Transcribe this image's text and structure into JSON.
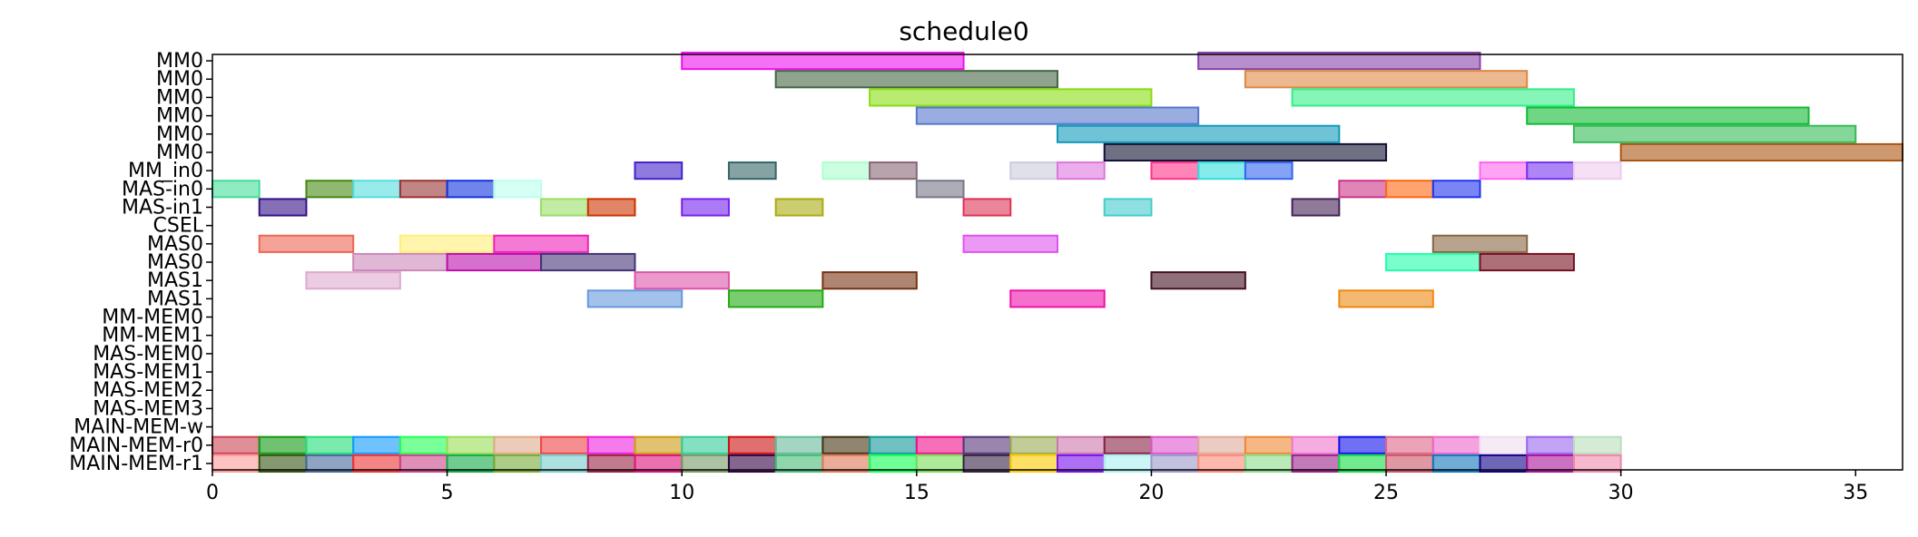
{
  "chart_data": {
    "type": "gantt",
    "title": "schedule0",
    "xlabel": "",
    "ylabel": "",
    "xlim": [
      0,
      36
    ],
    "x_ticks": [
      0,
      5,
      10,
      15,
      20,
      25,
      30,
      35
    ],
    "grid": false,
    "rows": [
      "MM0",
      "MM0",
      "MM0",
      "MM0",
      "MM0",
      "MM0",
      "MM_in0",
      "MAS-in0",
      "MAS-in1",
      "CSEL",
      "MAS0",
      "MAS0",
      "MAS1",
      "MAS1",
      "MM-MEM0",
      "MM-MEM1",
      "MAS-MEM0",
      "MAS-MEM1",
      "MAS-MEM2",
      "MAS-MEM3",
      "MAIN-MEM-w",
      "MAIN-MEM-r0",
      "MAIN-MEM-r1"
    ],
    "bars": [
      {
        "row": 0,
        "start": 10,
        "end": 16,
        "color": "#ee11ee"
      },
      {
        "row": 0,
        "start": 21,
        "end": 27,
        "color": "#8844aa"
      },
      {
        "row": 1,
        "start": 12,
        "end": 18,
        "color": "#446644"
      },
      {
        "row": 1,
        "start": 22,
        "end": 28,
        "color": "#dd8844"
      },
      {
        "row": 2,
        "start": 14,
        "end": 20,
        "color": "#88dd11"
      },
      {
        "row": 2,
        "start": 23,
        "end": 29,
        "color": "#33ee88"
      },
      {
        "row": 3,
        "start": 15,
        "end": 21,
        "color": "#5577cc"
      },
      {
        "row": 3,
        "start": 28,
        "end": 34,
        "color": "#11bb33"
      },
      {
        "row": 4,
        "start": 18,
        "end": 24,
        "color": "#1199bb"
      },
      {
        "row": 4,
        "start": 29,
        "end": 35,
        "color": "#33bb55"
      },
      {
        "row": 5,
        "start": 19,
        "end": 25,
        "color": "#111133"
      },
      {
        "row": 5,
        "start": 30,
        "end": 36,
        "color": "#aa5511"
      },
      {
        "row": 6,
        "start": 9,
        "end": 10,
        "color": "#4422cc"
      },
      {
        "row": 6,
        "start": 11,
        "end": 12,
        "color": "#336666"
      },
      {
        "row": 6,
        "start": 13,
        "end": 14,
        "color": "#aaffcc"
      },
      {
        "row": 6,
        "start": 14,
        "end": 15,
        "color": "#886677"
      },
      {
        "row": 6,
        "start": 17,
        "end": 18,
        "color": "#ccccdd"
      },
      {
        "row": 6,
        "start": 18,
        "end": 19,
        "color": "#dd77dd"
      },
      {
        "row": 6,
        "start": 20,
        "end": 21,
        "color": "#ff3388"
      },
      {
        "row": 6,
        "start": 21,
        "end": 22,
        "color": "#33dddd"
      },
      {
        "row": 6,
        "start": 22,
        "end": 23,
        "color": "#3366ee"
      },
      {
        "row": 6,
        "start": 27,
        "end": 28,
        "color": "#ff66ee"
      },
      {
        "row": 6,
        "start": 28,
        "end": 29,
        "color": "#7733ee"
      },
      {
        "row": 6,
        "start": 29,
        "end": 30,
        "color": "#eeccee"
      },
      {
        "row": 7,
        "start": 0,
        "end": 1,
        "color": "#44dd99"
      },
      {
        "row": 7,
        "start": 2,
        "end": 3,
        "color": "#448811"
      },
      {
        "row": 7,
        "start": 3,
        "end": 4,
        "color": "#55dddd"
      },
      {
        "row": 7,
        "start": 4,
        "end": 5,
        "color": "#993333"
      },
      {
        "row": 7,
        "start": 5,
        "end": 6,
        "color": "#1133dd"
      },
      {
        "row": 7,
        "start": 6,
        "end": 7,
        "color": "#bbffee"
      },
      {
        "row": 7,
        "start": 15,
        "end": 16,
        "color": "#777788"
      },
      {
        "row": 7,
        "start": 24,
        "end": 25,
        "color": "#cc3388"
      },
      {
        "row": 7,
        "start": 25,
        "end": 26,
        "color": "#ff6611"
      },
      {
        "row": 7,
        "start": 26,
        "end": 27,
        "color": "#2233ee"
      },
      {
        "row": 8,
        "start": 1,
        "end": 2,
        "color": "#331188"
      },
      {
        "row": 8,
        "start": 7,
        "end": 8,
        "color": "#99dd66"
      },
      {
        "row": 8,
        "start": 8,
        "end": 9,
        "color": "#cc3300"
      },
      {
        "row": 8,
        "start": 10,
        "end": 11,
        "color": "#7722ee"
      },
      {
        "row": 8,
        "start": 12,
        "end": 13,
        "color": "#aaaa11"
      },
      {
        "row": 8,
        "start": 16,
        "end": 17,
        "color": "#dd3355"
      },
      {
        "row": 8,
        "start": 19,
        "end": 20,
        "color": "#44cccc"
      },
      {
        "row": 8,
        "start": 23,
        "end": 24,
        "color": "#442255"
      },
      {
        "row": 10,
        "start": 1,
        "end": 3,
        "color": "#ee6655"
      },
      {
        "row": 10,
        "start": 4,
        "end": 6,
        "color": "#ffee77"
      },
      {
        "row": 10,
        "start": 6,
        "end": 8,
        "color": "#ee22bb"
      },
      {
        "row": 10,
        "start": 16,
        "end": 18,
        "color": "#dd55ee"
      },
      {
        "row": 10,
        "start": 26,
        "end": 28,
        "color": "#886644"
      },
      {
        "row": 11,
        "start": 3,
        "end": 5,
        "color": "#cc88bb"
      },
      {
        "row": 11,
        "start": 5,
        "end": 7,
        "color": "#bb11aa"
      },
      {
        "row": 11,
        "start": 7,
        "end": 9,
        "color": "#443377"
      },
      {
        "row": 11,
        "start": 25,
        "end": 27,
        "color": "#22ffaa"
      },
      {
        "row": 11,
        "start": 27,
        "end": 29,
        "color": "#771122"
      },
      {
        "row": 12,
        "start": 2,
        "end": 4,
        "color": "#ddaacc"
      },
      {
        "row": 12,
        "start": 9,
        "end": 11,
        "color": "#dd55aa"
      },
      {
        "row": 12,
        "start": 13,
        "end": 15,
        "color": "#773311"
      },
      {
        "row": 12,
        "start": 20,
        "end": 22,
        "color": "#441122"
      },
      {
        "row": 13,
        "start": 8,
        "end": 10,
        "color": "#6699dd"
      },
      {
        "row": 13,
        "start": 11,
        "end": 13,
        "color": "#22aa11"
      },
      {
        "row": 13,
        "start": 17,
        "end": 19,
        "color": "#ee11aa"
      },
      {
        "row": 13,
        "start": 24,
        "end": 26,
        "color": "#ee8811"
      },
      {
        "row": 21,
        "start": 0,
        "end": 1,
        "color": "#cc4455"
      },
      {
        "row": 21,
        "start": 1,
        "end": 2,
        "color": "#119911"
      },
      {
        "row": 21,
        "start": 2,
        "end": 3,
        "color": "#22dd77"
      },
      {
        "row": 21,
        "start": 3,
        "end": 4,
        "color": "#1199ff"
      },
      {
        "row": 21,
        "start": 4,
        "end": 5,
        "color": "#22ff55"
      },
      {
        "row": 21,
        "start": 5,
        "end": 6,
        "color": "#99dd55"
      },
      {
        "row": 21,
        "start": 6,
        "end": 7,
        "color": "#ddaa88"
      },
      {
        "row": 21,
        "start": 7,
        "end": 8,
        "color": "#ee4444"
      },
      {
        "row": 21,
        "start": 8,
        "end": 9,
        "color": "#ee22dd"
      },
      {
        "row": 21,
        "start": 9,
        "end": 10,
        "color": "#cc9911"
      },
      {
        "row": 21,
        "start": 10,
        "end": 11,
        "color": "#33cc99"
      },
      {
        "row": 21,
        "start": 11,
        "end": 12,
        "color": "#cc1111"
      },
      {
        "row": 21,
        "start": 12,
        "end": 13,
        "color": "#66bb99"
      },
      {
        "row": 21,
        "start": 13,
        "end": 14,
        "color": "#443311"
      },
      {
        "row": 21,
        "start": 14,
        "end": 15,
        "color": "#119999"
      },
      {
        "row": 21,
        "start": 15,
        "end": 16,
        "color": "#ee1188"
      },
      {
        "row": 21,
        "start": 16,
        "end": 17,
        "color": "#553377"
      },
      {
        "row": 21,
        "start": 17,
        "end": 18,
        "color": "#99aa55"
      },
      {
        "row": 21,
        "start": 18,
        "end": 19,
        "color": "#cc77aa"
      },
      {
        "row": 21,
        "start": 19,
        "end": 20,
        "color": "#882244"
      },
      {
        "row": 21,
        "start": 20,
        "end": 21,
        "color": "#dd55cc"
      },
      {
        "row": 21,
        "start": 21,
        "end": 22,
        "color": "#ddaa99"
      },
      {
        "row": 21,
        "start": 22,
        "end": 23,
        "color": "#ee8833"
      },
      {
        "row": 21,
        "start": 23,
        "end": 24,
        "color": "#ee77cc"
      },
      {
        "row": 21,
        "start": 24,
        "end": 25,
        "color": "#1111ee"
      },
      {
        "row": 21,
        "start": 25,
        "end": 26,
        "color": "#dd6688"
      },
      {
        "row": 21,
        "start": 26,
        "end": 27,
        "color": "#ee66cc"
      },
      {
        "row": 21,
        "start": 27,
        "end": 28,
        "color": "#eeddee"
      },
      {
        "row": 21,
        "start": 28,
        "end": 29,
        "color": "#9966ee"
      },
      {
        "row": 21,
        "start": 29,
        "end": 30,
        "color": "#bbddbb"
      },
      {
        "row": 22,
        "start": 0,
        "end": 1,
        "color": "#ff9999"
      },
      {
        "row": 22,
        "start": 1,
        "end": 2,
        "color": "#335511"
      },
      {
        "row": 22,
        "start": 2,
        "end": 3,
        "color": "#446699"
      },
      {
        "row": 22,
        "start": 3,
        "end": 4,
        "color": "#ee3333"
      },
      {
        "row": 22,
        "start": 4,
        "end": 5,
        "color": "#cc4488"
      },
      {
        "row": 22,
        "start": 5,
        "end": 6,
        "color": "#11aa44"
      },
      {
        "row": 22,
        "start": 6,
        "end": 7,
        "color": "#77aa33"
      },
      {
        "row": 22,
        "start": 7,
        "end": 8,
        "color": "#77cccc"
      },
      {
        "row": 22,
        "start": 8,
        "end": 9,
        "color": "#992244"
      },
      {
        "row": 22,
        "start": 9,
        "end": 10,
        "color": "#dd1177"
      },
      {
        "row": 22,
        "start": 10,
        "end": 11,
        "color": "#779966"
      },
      {
        "row": 22,
        "start": 11,
        "end": 12,
        "color": "#330044"
      },
      {
        "row": 22,
        "start": 12,
        "end": 13,
        "color": "#44bb77"
      },
      {
        "row": 22,
        "start": 13,
        "end": 14,
        "color": "#dd7755"
      },
      {
        "row": 22,
        "start": 14,
        "end": 15,
        "color": "#11ff55"
      },
      {
        "row": 22,
        "start": 15,
        "end": 16,
        "color": "#77dd55"
      },
      {
        "row": 22,
        "start": 16,
        "end": 17,
        "color": "#332244"
      },
      {
        "row": 22,
        "start": 17,
        "end": 18,
        "color": "#ffcc00"
      },
      {
        "row": 22,
        "start": 18,
        "end": 19,
        "color": "#7711ee"
      },
      {
        "row": 22,
        "start": 19,
        "end": 20,
        "color": "#aaeeee"
      },
      {
        "row": 22,
        "start": 20,
        "end": 21,
        "color": "#9999cc"
      },
      {
        "row": 22,
        "start": 21,
        "end": 22,
        "color": "#ff8877"
      },
      {
        "row": 22,
        "start": 22,
        "end": 23,
        "color": "#88dd88"
      },
      {
        "row": 22,
        "start": 23,
        "end": 24,
        "color": "#992288"
      },
      {
        "row": 22,
        "start": 24,
        "end": 25,
        "color": "#11dd44"
      },
      {
        "row": 22,
        "start": 25,
        "end": 26,
        "color": "#cc5566"
      },
      {
        "row": 22,
        "start": 26,
        "end": 27,
        "color": "#1177bb"
      },
      {
        "row": 22,
        "start": 27,
        "end": 28,
        "color": "#110088"
      },
      {
        "row": 22,
        "start": 28,
        "end": 29,
        "color": "#aa1199"
      },
      {
        "row": 22,
        "start": 29,
        "end": 30,
        "color": "#ee88aa"
      }
    ]
  }
}
